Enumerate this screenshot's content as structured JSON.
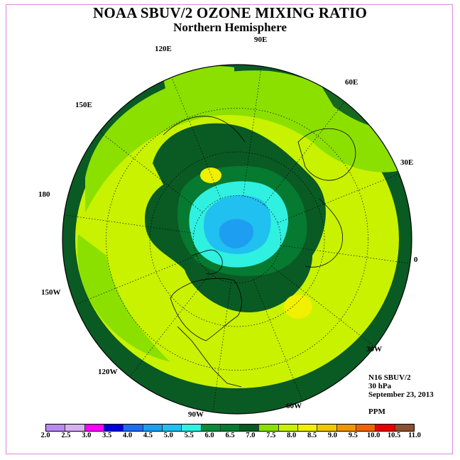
{
  "title": "NOAA SBUV/2 OZONE MIXING RATIO",
  "subtitle": "Northern Hemisphere",
  "longitude_labels": [
    "90E",
    "60E",
    "30E",
    "0",
    "30W",
    "60W",
    "90W",
    "120W",
    "150W",
    "180",
    "150E",
    "120E"
  ],
  "info": {
    "instrument": "N16 SBUV/2",
    "level": "30 hPa",
    "date": "September 23, 2013",
    "units": "PPM"
  },
  "colorbar": {
    "ticks": [
      "2.0",
      "2.5",
      "3.0",
      "3.5",
      "4.0",
      "4.5",
      "5.0",
      "5.5",
      "6.0",
      "6.5",
      "7.0",
      "7.5",
      "8.0",
      "8.5",
      "9.0",
      "9.5",
      "10.0",
      "10.5",
      "11.0"
    ],
    "colors": [
      "#b88af0",
      "#d8b0f0",
      "#ff00ff",
      "#0000dd",
      "#1e6cf0",
      "#1e9ef0",
      "#20c0f0",
      "#30f0e0",
      "#0a8a3a",
      "#067a30",
      "#0a5a24",
      "#8ce000",
      "#c8f200",
      "#f0f000",
      "#f0c800",
      "#f09600",
      "#f06400",
      "#e80000",
      "#8a5030"
    ]
  }
}
